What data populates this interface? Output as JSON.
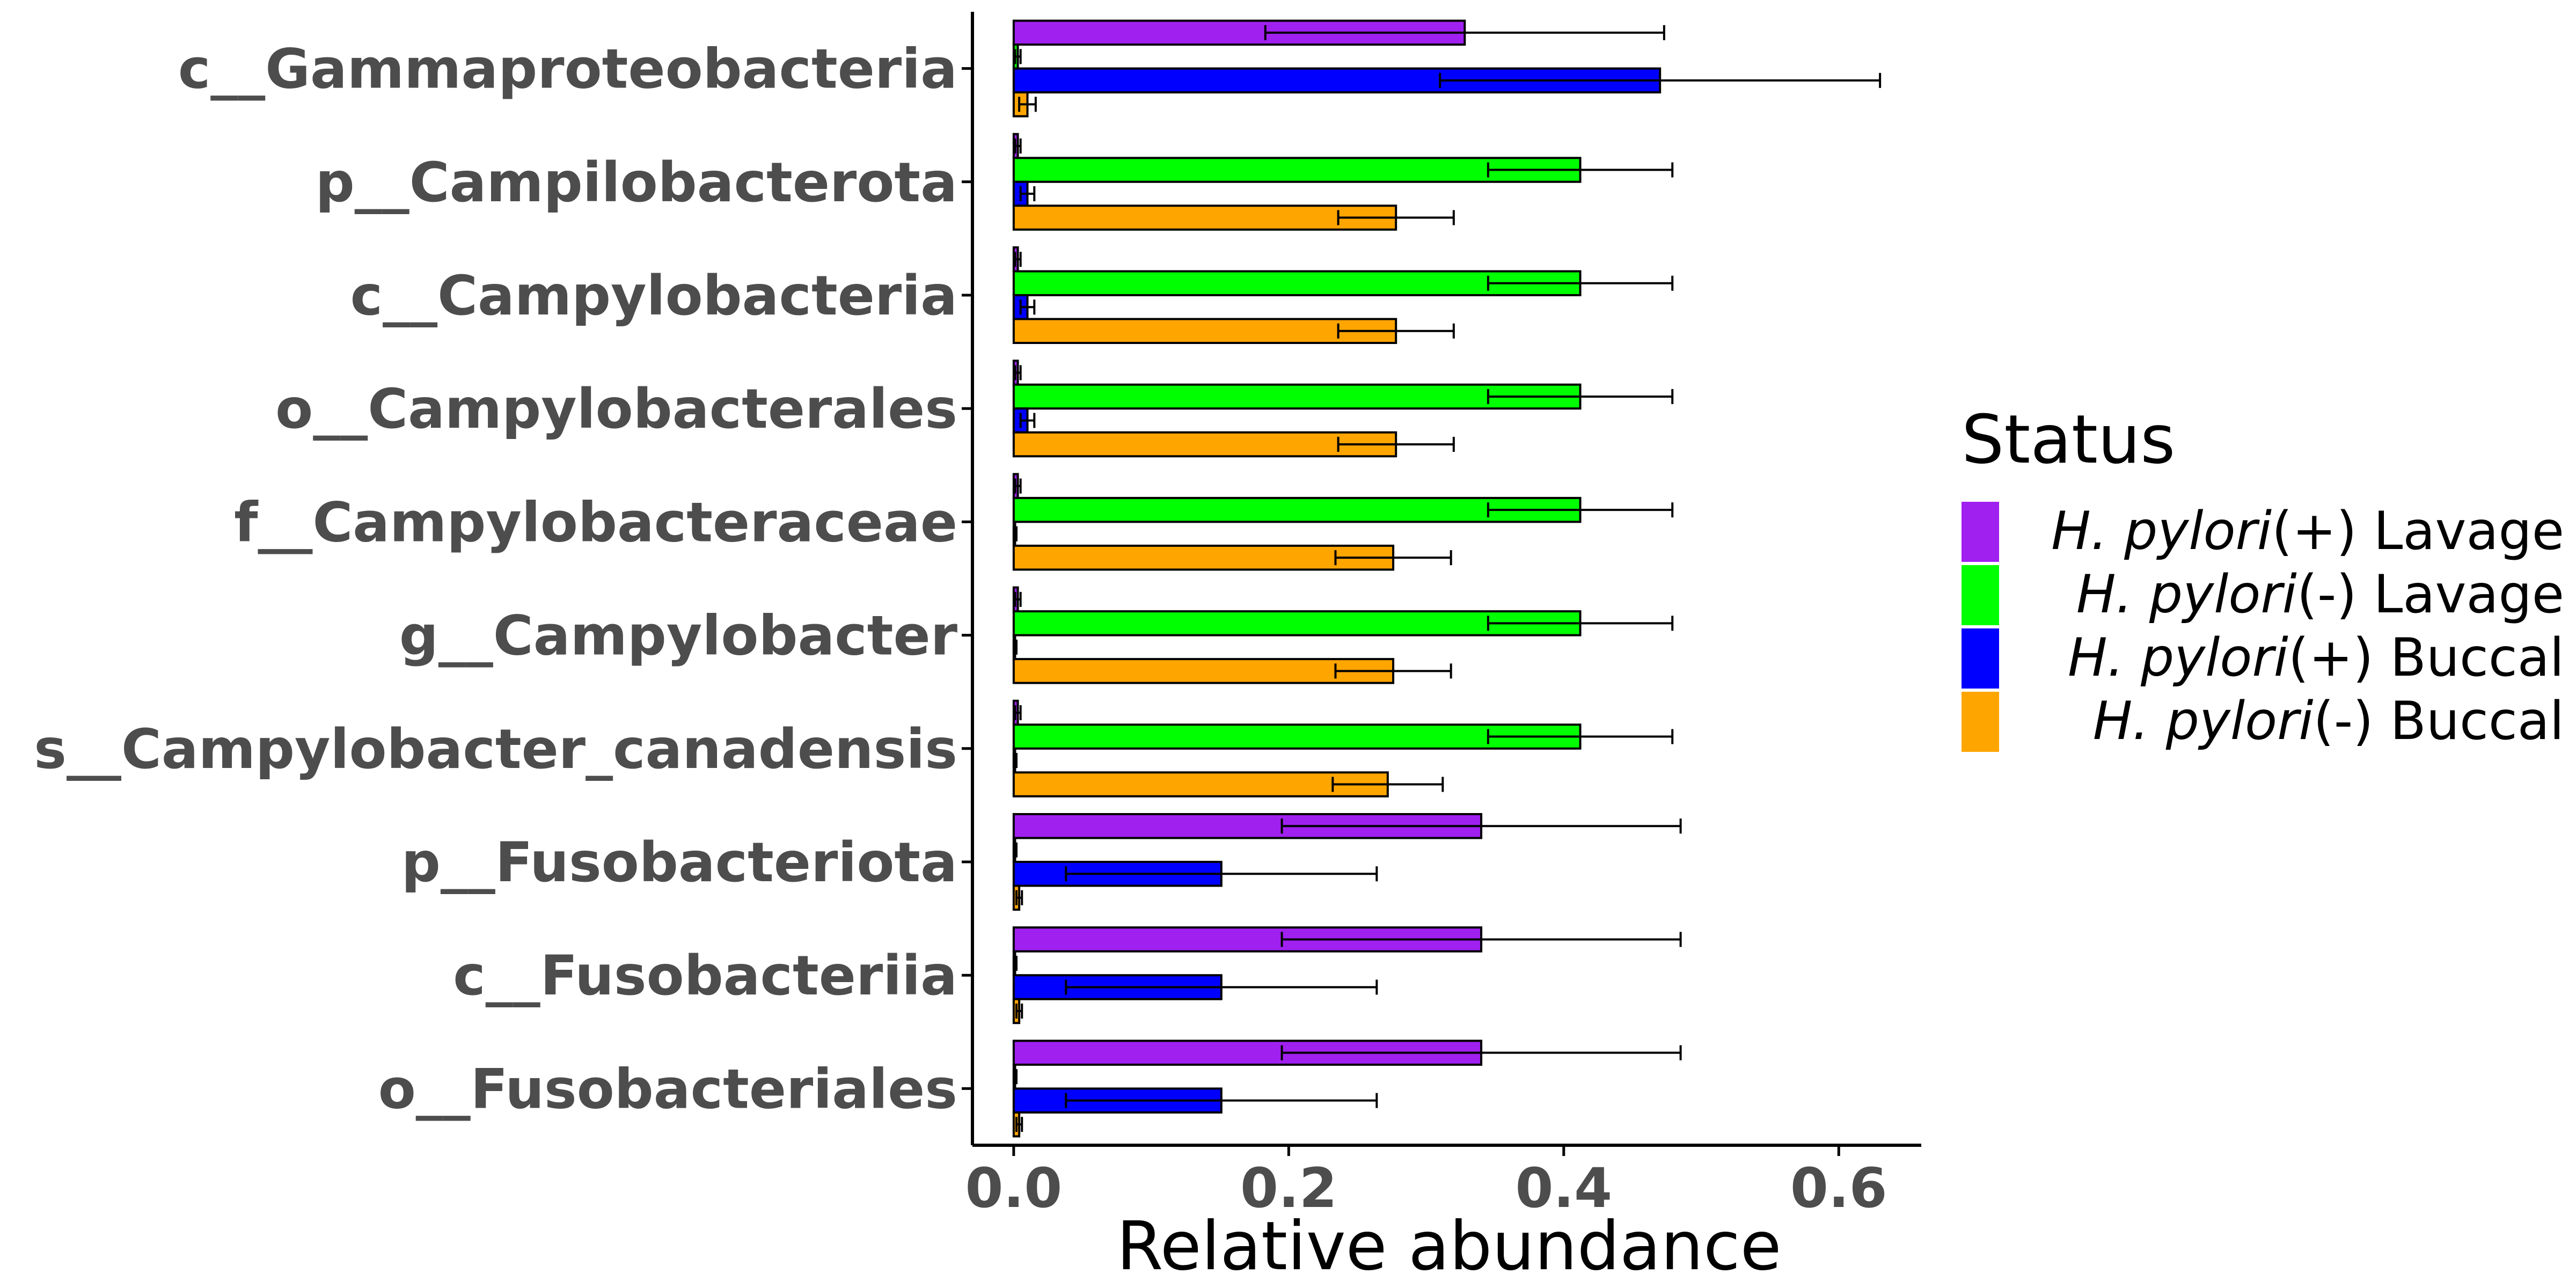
{
  "chart_data": {
    "type": "bar",
    "orientation": "horizontal",
    "xlabel": "Relative abundance",
    "ylabel": "",
    "xlim": [
      -0.03,
      0.66
    ],
    "xticks": [
      0.0,
      0.2,
      0.4,
      0.6
    ],
    "xtick_labels": [
      "0.0",
      "0.2",
      "0.4",
      "0.6"
    ],
    "grid": false,
    "legend": {
      "title": "Status",
      "placement": "right",
      "entries": [
        {
          "italic": "H. pylori",
          "suffix": "(+) Lavage"
        },
        {
          "italic": "H. pylori",
          "suffix": "(-) Lavage"
        },
        {
          "italic": "H. pylori",
          "suffix": "(+) Buccal"
        },
        {
          "italic": "H. pylori",
          "suffix": "(-) Buccal"
        }
      ]
    },
    "categories": [
      "c__Gammaproteobacteria",
      "p__Campilobacterota",
      "c__Campylobacteria",
      "o__Campylobacterales",
      "f__Campylobacteraceae",
      "g__Campylobacter",
      "s__Campylobacter_canadensis",
      "p__Fusobacteriota",
      "c__Fusobacteriia",
      "o__Fusobacteriales"
    ],
    "series": [
      {
        "name": "H. pylori(+) Lavage",
        "color": "#A020F0",
        "values": [
          0.328,
          0.003,
          0.003,
          0.003,
          0.003,
          0.003,
          0.003,
          0.34,
          0.34,
          0.34
        ],
        "errors": [
          0.145,
          0.002,
          0.002,
          0.002,
          0.002,
          0.002,
          0.002,
          0.145,
          0.145,
          0.145
        ]
      },
      {
        "name": "H. pylori(-) Lavage",
        "color": "#00FF00",
        "values": [
          0.003,
          0.412,
          0.412,
          0.412,
          0.412,
          0.412,
          0.412,
          0.001,
          0.001,
          0.001
        ],
        "errors": [
          0.002,
          0.067,
          0.067,
          0.067,
          0.067,
          0.067,
          0.067,
          0.001,
          0.001,
          0.001
        ]
      },
      {
        "name": "H. pylori(+) Buccal",
        "color": "#0000FF",
        "values": [
          0.47,
          0.01,
          0.01,
          0.01,
          0.001,
          0.001,
          0.001,
          0.151,
          0.151,
          0.151
        ],
        "errors": [
          0.16,
          0.005,
          0.005,
          0.005,
          0.001,
          0.001,
          0.001,
          0.113,
          0.113,
          0.113
        ]
      },
      {
        "name": "H. pylori(-) Buccal",
        "color": "#FFA500",
        "values": [
          0.01,
          0.278,
          0.278,
          0.278,
          0.276,
          0.276,
          0.272,
          0.004,
          0.004,
          0.004
        ],
        "errors": [
          0.006,
          0.042,
          0.042,
          0.042,
          0.042,
          0.042,
          0.04,
          0.002,
          0.002,
          0.002
        ]
      }
    ]
  }
}
